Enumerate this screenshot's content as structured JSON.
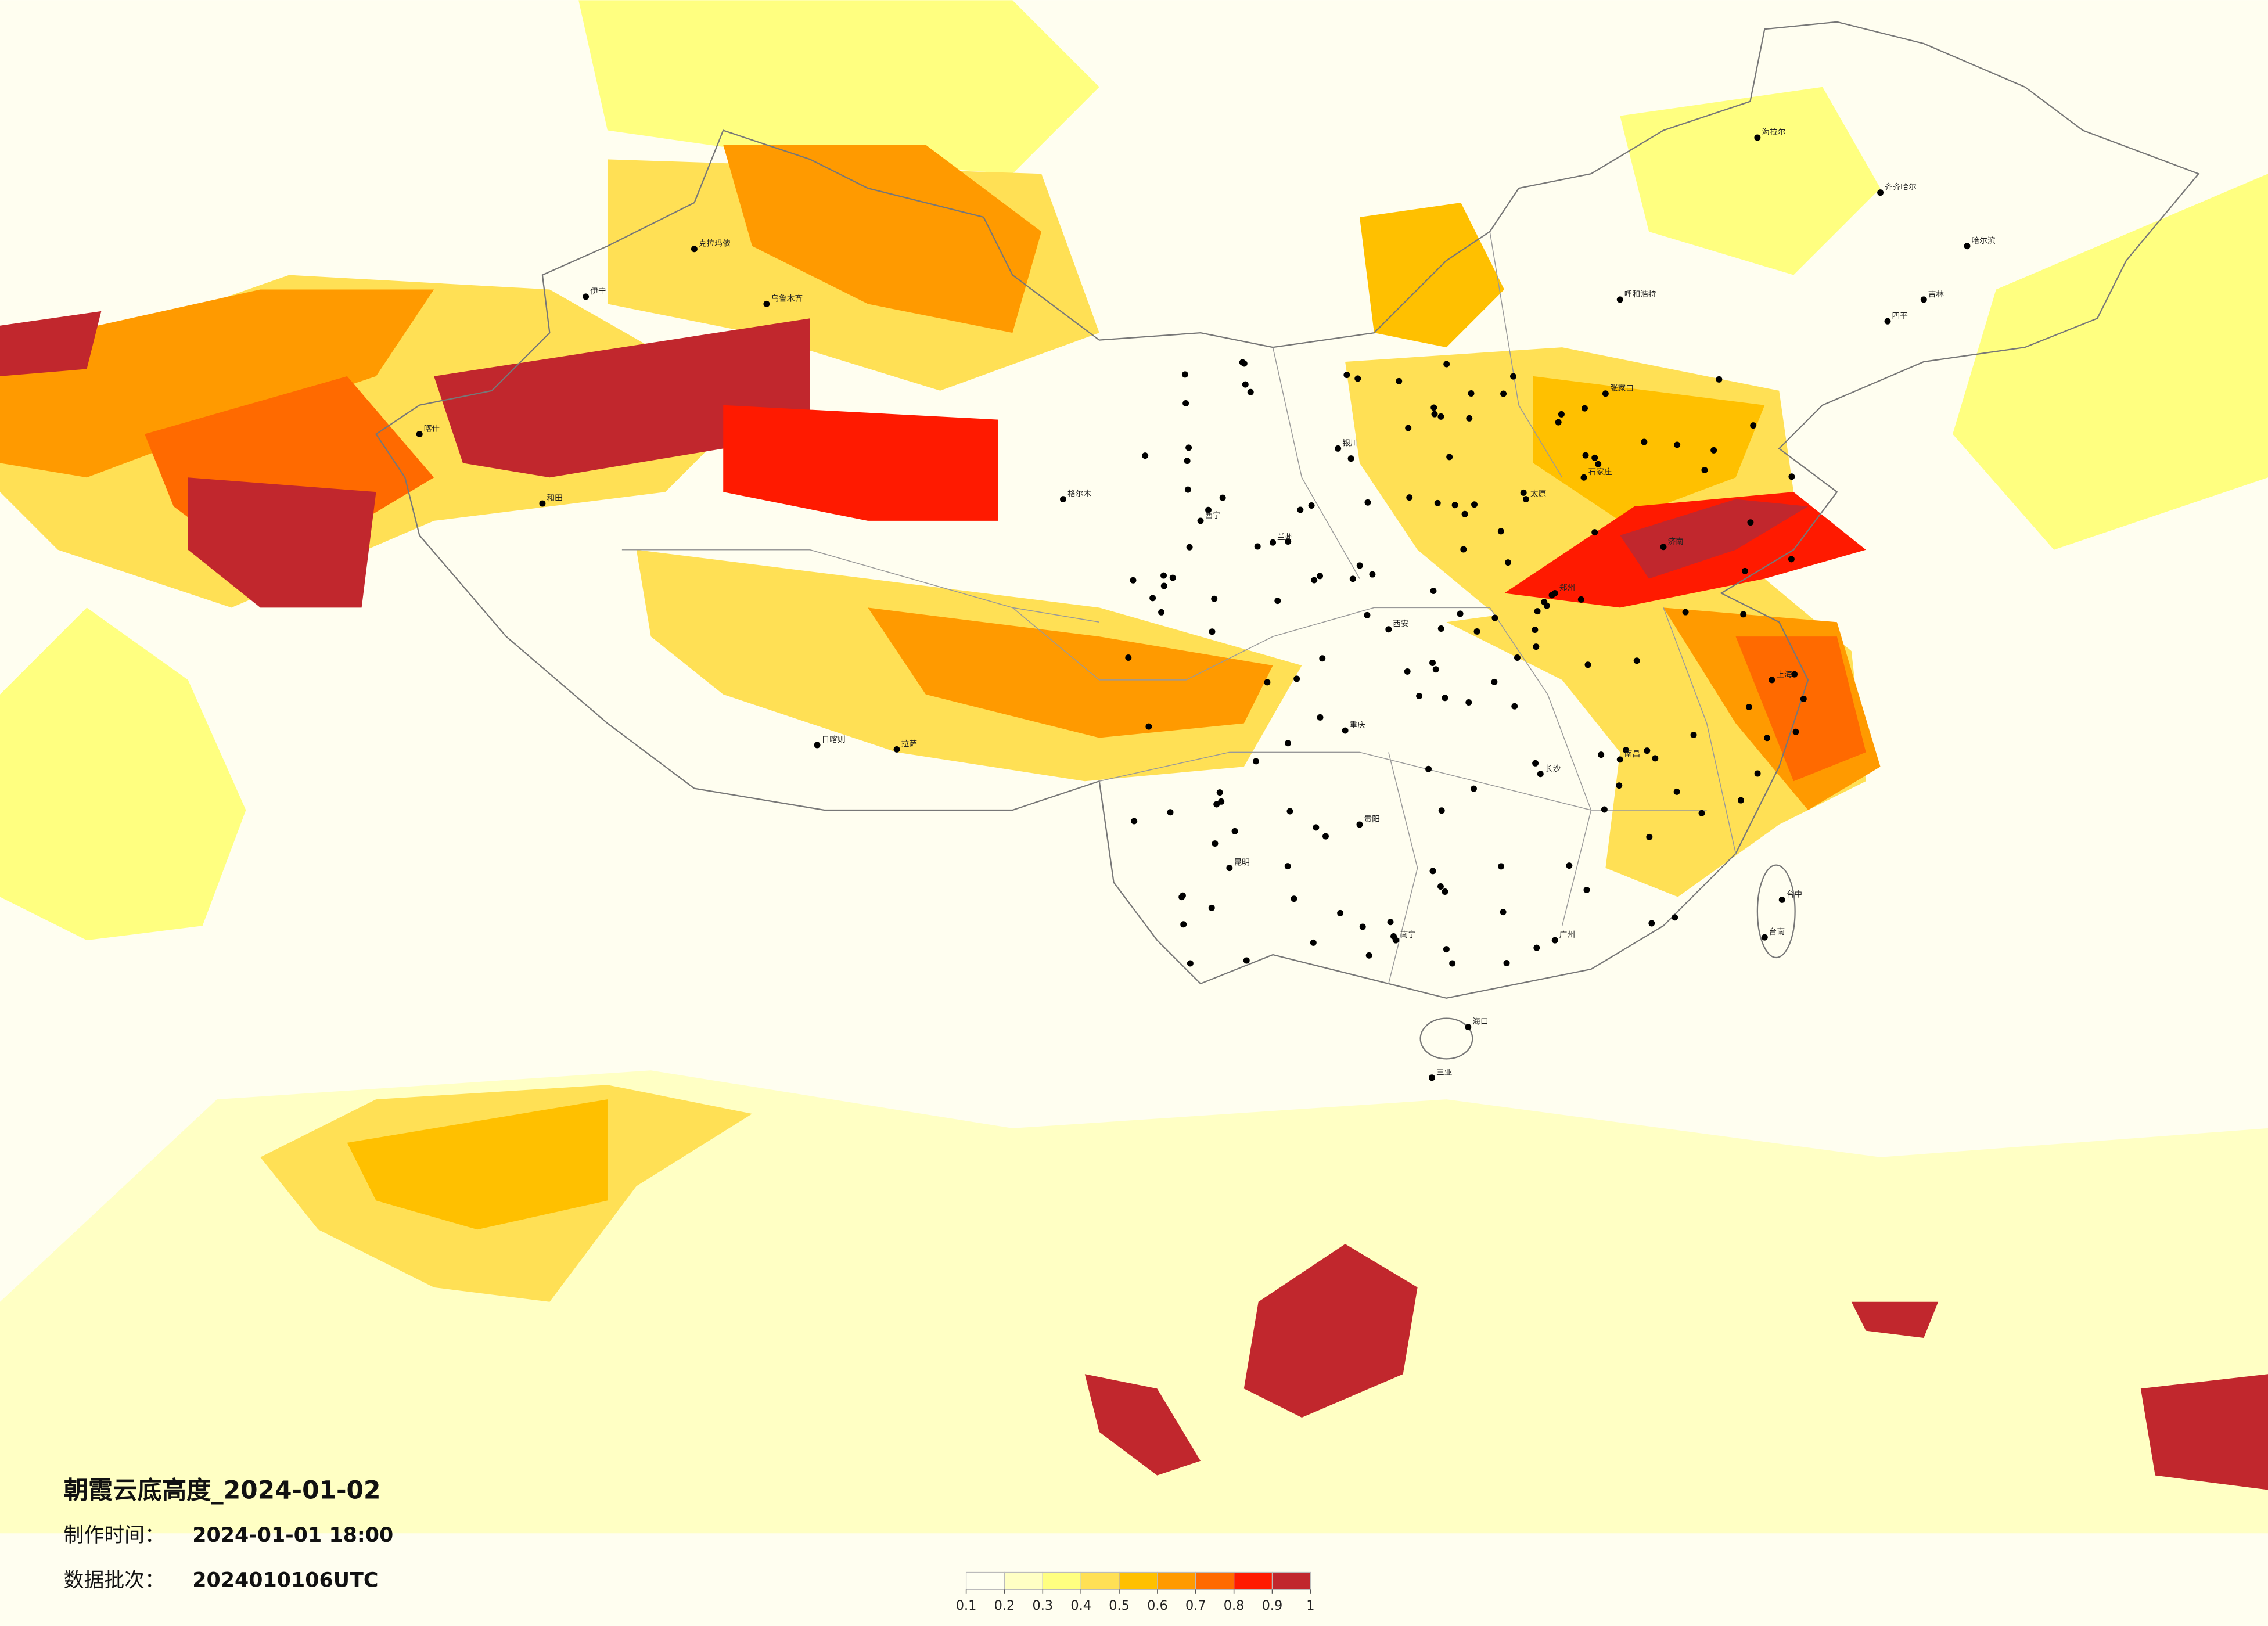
{
  "header": {
    "title": "朝霞云底高度_2024-01-02",
    "made_label": "制作时间：",
    "made_time": "2024-01-01 18:00",
    "batch_label": "数据批次：",
    "batch": "2024010106UTC"
  },
  "legend": {
    "ticks": [
      0.1,
      0.2,
      0.3,
      0.4,
      0.5,
      0.6,
      0.7,
      0.8,
      0.9,
      1
    ],
    "colors": [
      "#fffff2",
      "#ffffc4",
      "#ffff80",
      "#ffe055",
      "#ffc000",
      "#ff9a00",
      "#ff6a00",
      "#ff1a00",
      "#c1272d"
    ]
  },
  "cities": [
    "海拉尔",
    "齐齐哈尔",
    "哈尔滨",
    "吉林",
    "四平",
    "呼和浩特",
    "张家口",
    "石家庄",
    "太原",
    "济南",
    "郑州",
    "西安",
    "兰州",
    "西宁",
    "银川",
    "乌鲁木齐",
    "克拉玛依",
    "伊宁",
    "喀什",
    "和田",
    "格尔木",
    "拉萨",
    "日喀则",
    "昆明",
    "贵阳",
    "南宁",
    "海口",
    "三亚",
    "台中",
    "台南",
    "南昌",
    "长沙",
    "重庆",
    "上海",
    "广州"
  ]
}
